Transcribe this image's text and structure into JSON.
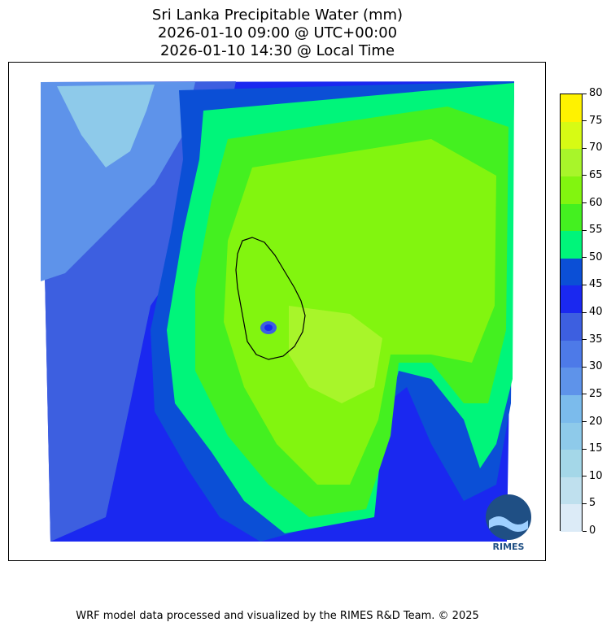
{
  "title": {
    "line1": "Sri Lanka Precipitable Water (mm)",
    "line2": "2026-01-10 09:00 @ UTC+00:00",
    "line3": "2026-01-10 14:30 @ Local Time"
  },
  "colorbar": {
    "levels": [
      0,
      5,
      10,
      15,
      20,
      25,
      30,
      35,
      40,
      45,
      50,
      55,
      60,
      65,
      70,
      75,
      80
    ],
    "colors": [
      "#dcebf7",
      "#bfe0ee",
      "#a4d7e8",
      "#8ecaea",
      "#7bbbec",
      "#5e93ea",
      "#4d7ae8",
      "#3d5fe0",
      "#1a28f0",
      "#0b4fd6",
      "#00f57a",
      "#44f020",
      "#82f50f",
      "#a8f52a",
      "#d7fb14",
      "#fff200",
      "#ffcc00"
    ]
  },
  "footer": "WRF model data processed and visualized by the RIMES R&D Team. © 2025",
  "logo": {
    "text": "RIMES",
    "icon": "rimes-logo-icon"
  }
}
